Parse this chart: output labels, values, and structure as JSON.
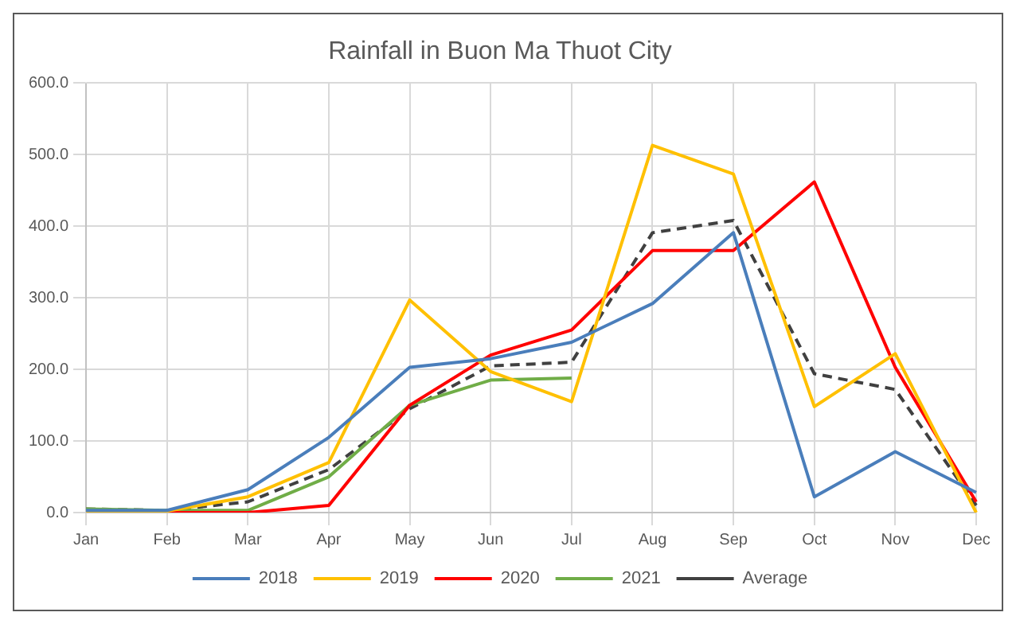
{
  "chart_data": {
    "type": "line",
    "title": "Rainfall in Buon Ma Thuot City",
    "categories": [
      "Jan",
      "Feb",
      "Mar",
      "Apr",
      "May",
      "Jun",
      "Jul",
      "Aug",
      "Sep",
      "Oct",
      "Nov",
      "Dec"
    ],
    "series": [
      {
        "name": "2018",
        "color": "#4a7ebb",
        "values": [
          3,
          3,
          32,
          105,
          203,
          215,
          238,
          292,
          391,
          22,
          85,
          28
        ]
      },
      {
        "name": "2019",
        "color": "#ffc000",
        "values": [
          2,
          2,
          22,
          70,
          297,
          197,
          155,
          513,
          473,
          148,
          222,
          0
        ]
      },
      {
        "name": "2020",
        "color": "#ff0000",
        "values": [
          0,
          0,
          0,
          10,
          150,
          220,
          255,
          366,
          366,
          462,
          203,
          15
        ]
      },
      {
        "name": "2021",
        "color": "#70ad47",
        "values": [
          5,
          3,
          3,
          50,
          150,
          185,
          188,
          null,
          null,
          null,
          null,
          null
        ]
      },
      {
        "name": "Average",
        "color": "#404040",
        "line_style": "dashed",
        "values": [
          5,
          3,
          15,
          60,
          145,
          205,
          210,
          391,
          408,
          194,
          172,
          10
        ]
      }
    ],
    "ylim": [
      0,
      600
    ],
    "yticks": [
      {
        "value": 0,
        "label": "0.0"
      },
      {
        "value": 100,
        "label": "100.0"
      },
      {
        "value": 200,
        "label": "200.0"
      },
      {
        "value": 300,
        "label": "300.0"
      },
      {
        "value": 400,
        "label": "400.0"
      },
      {
        "value": 500,
        "label": "500.0"
      },
      {
        "value": 600,
        "label": "600.0"
      }
    ],
    "grid": true,
    "legend": "bottom",
    "marker": "none",
    "line_style": "solid"
  }
}
